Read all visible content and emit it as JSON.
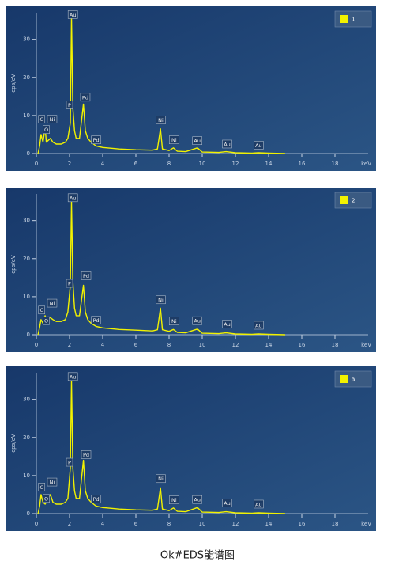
{
  "chart_data": [
    {
      "type": "line",
      "xlabel": "keV",
      "ylabel": "cps/eV",
      "xlim": [
        0,
        20
      ],
      "ylim": [
        0,
        37
      ],
      "xticks": [
        0,
        2,
        4,
        6,
        8,
        10,
        12,
        14,
        16,
        18
      ],
      "yticks": [
        0,
        10,
        20,
        30
      ],
      "legend": "top-right",
      "x": [
        0.1,
        0.2,
        0.28,
        0.4,
        0.53,
        0.6,
        0.85,
        1.0,
        1.2,
        1.5,
        1.75,
        1.9,
        2.05,
        2.12,
        2.2,
        2.3,
        2.4,
        2.6,
        2.84,
        2.95,
        3.1,
        3.3,
        3.6,
        4,
        5,
        6,
        7,
        7.3,
        7.48,
        7.6,
        8,
        8.26,
        8.5,
        9,
        9.71,
        10,
        11,
        11.44,
        12,
        13,
        13.38,
        14,
        15
      ],
      "series": [
        {
          "name": "1",
          "color": "#f2f200",
          "values": [
            0,
            2,
            5,
            3,
            7,
            3,
            4,
            3,
            2.5,
            2.5,
            3,
            4,
            8,
            36,
            12,
            6,
            4,
            4,
            13,
            6,
            4,
            3,
            2,
            1.6,
            1.2,
            1,
            0.9,
            1.2,
            6.5,
            1.2,
            0.8,
            1.5,
            0.6,
            0.5,
            1.5,
            0.4,
            0.3,
            0.5,
            0.2,
            0.1,
            0.2,
            0.1,
            0
          ]
        }
      ],
      "annotations": [
        {
          "text": "C",
          "x": 0.32,
          "y": 9
        },
        {
          "text": "O",
          "x": 0.6,
          "y": 6.3
        },
        {
          "text": "Ni",
          "x": 0.95,
          "y": 9
        },
        {
          "text": "Au",
          "x": 2.2,
          "y": 36.5
        },
        {
          "text": "P",
          "x": 2.0,
          "y": 12.8
        },
        {
          "text": "Pd",
          "x": 2.95,
          "y": 14.8
        },
        {
          "text": "Pd",
          "x": 3.6,
          "y": 3.6
        },
        {
          "text": "Ni",
          "x": 7.5,
          "y": 8.8
        },
        {
          "text": "Ni",
          "x": 8.3,
          "y": 3.6
        },
        {
          "text": "Au",
          "x": 9.7,
          "y": 3.4
        },
        {
          "text": "Au",
          "x": 11.5,
          "y": 2.5
        },
        {
          "text": "Au",
          "x": 13.4,
          "y": 2.2
        }
      ]
    },
    {
      "type": "line",
      "xlabel": "keV",
      "ylabel": "cps/eV",
      "xlim": [
        0,
        20
      ],
      "ylim": [
        0,
        37
      ],
      "xticks": [
        0,
        2,
        4,
        6,
        8,
        10,
        12,
        14,
        16,
        18
      ],
      "yticks": [
        0,
        10,
        20,
        30
      ],
      "legend": "top-right",
      "x": [
        0.1,
        0.2,
        0.28,
        0.4,
        0.53,
        0.6,
        0.85,
        1.0,
        1.2,
        1.5,
        1.75,
        1.9,
        2.05,
        2.12,
        2.2,
        2.3,
        2.4,
        2.6,
        2.84,
        2.95,
        3.1,
        3.3,
        3.6,
        4,
        5,
        6,
        7,
        7.3,
        7.48,
        7.6,
        8,
        8.26,
        8.5,
        9,
        9.71,
        10,
        11,
        11.44,
        12,
        13,
        13.38,
        14,
        15
      ],
      "series": [
        {
          "name": "2",
          "color": "#f2f200",
          "values": [
            0,
            2,
            4,
            3,
            5,
            4,
            4.5,
            4,
            3.5,
            3.5,
            4,
            6,
            13,
            35,
            14,
            7,
            5,
            5,
            13,
            6,
            4,
            3,
            2.2,
            1.8,
            1.4,
            1.2,
            1,
            1.3,
            7,
            1.3,
            0.9,
            1.4,
            0.6,
            0.5,
            1.5,
            0.4,
            0.3,
            0.5,
            0.2,
            0.1,
            0.2,
            0.1,
            0
          ]
        }
      ],
      "annotations": [
        {
          "text": "C",
          "x": 0.32,
          "y": 6.5
        },
        {
          "text": "O",
          "x": 0.6,
          "y": 3.7
        },
        {
          "text": "Ni",
          "x": 0.95,
          "y": 8.3
        },
        {
          "text": "Au",
          "x": 2.2,
          "y": 36
        },
        {
          "text": "P",
          "x": 2.0,
          "y": 13.5
        },
        {
          "text": "Pd",
          "x": 3.0,
          "y": 15.5
        },
        {
          "text": "Pd",
          "x": 3.6,
          "y": 3.8
        },
        {
          "text": "Ni",
          "x": 7.5,
          "y": 9.2
        },
        {
          "text": "Ni",
          "x": 8.3,
          "y": 3.6
        },
        {
          "text": "Au",
          "x": 9.7,
          "y": 3.7
        },
        {
          "text": "Au",
          "x": 11.5,
          "y": 2.8
        },
        {
          "text": "Au",
          "x": 13.4,
          "y": 2.5
        }
      ]
    },
    {
      "type": "line",
      "xlabel": "keV",
      "ylabel": "cps/eV",
      "xlim": [
        0,
        20
      ],
      "ylim": [
        0,
        37
      ],
      "xticks": [
        0,
        2,
        4,
        6,
        8,
        10,
        12,
        14,
        16,
        18
      ],
      "yticks": [
        0,
        10,
        20,
        30
      ],
      "legend": "top-right",
      "x": [
        0.1,
        0.2,
        0.28,
        0.4,
        0.53,
        0.6,
        0.85,
        1.0,
        1.2,
        1.5,
        1.75,
        1.9,
        2.05,
        2.12,
        2.2,
        2.3,
        2.4,
        2.6,
        2.84,
        2.95,
        3.1,
        3.3,
        3.6,
        4,
        5,
        6,
        7,
        7.3,
        7.48,
        7.6,
        8,
        8.26,
        8.5,
        9,
        9.71,
        10,
        11,
        11.44,
        12,
        13,
        13.38,
        14,
        15
      ],
      "series": [
        {
          "name": "3",
          "color": "#f2f200",
          "values": [
            0,
            2,
            5,
            3,
            2.5,
            3,
            5,
            3,
            2.5,
            2.5,
            3,
            4,
            12,
            35,
            12,
            6,
            4,
            4,
            14,
            6,
            4,
            3,
            2,
            1.6,
            1.2,
            1,
            0.9,
            1.2,
            6.8,
            1.2,
            0.8,
            1.5,
            0.6,
            0.5,
            1.6,
            0.4,
            0.3,
            0.5,
            0.2,
            0.1,
            0.2,
            0.1,
            0
          ]
        }
      ],
      "annotations": [
        {
          "text": "C",
          "x": 0.32,
          "y": 7
        },
        {
          "text": "O",
          "x": 0.6,
          "y": 4
        },
        {
          "text": "Ni",
          "x": 0.95,
          "y": 8.3
        },
        {
          "text": "Au",
          "x": 2.2,
          "y": 36
        },
        {
          "text": "P",
          "x": 2.0,
          "y": 13.5
        },
        {
          "text": "Pd",
          "x": 3.0,
          "y": 15.5
        },
        {
          "text": "Pd",
          "x": 3.6,
          "y": 3.8
        },
        {
          "text": "Ni",
          "x": 7.5,
          "y": 9.2
        },
        {
          "text": "Ni",
          "x": 8.3,
          "y": 3.6
        },
        {
          "text": "Au",
          "x": 9.7,
          "y": 3.7
        },
        {
          "text": "Au",
          "x": 11.5,
          "y": 2.8
        },
        {
          "text": "Au",
          "x": 13.4,
          "y": 2.5
        }
      ]
    }
  ],
  "caption": "Ok#EDS能谱图"
}
